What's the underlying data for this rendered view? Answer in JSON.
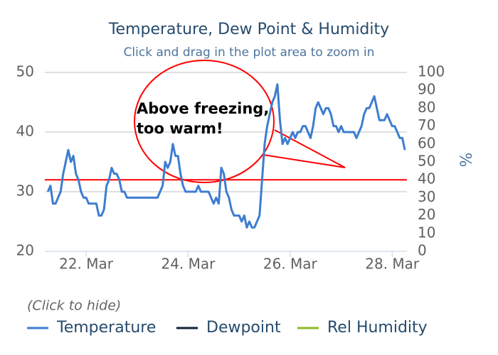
{
  "chart_data": {
    "type": "line",
    "title": "Temperature, Dew Point & Humidity",
    "subtitle": "Click and drag in the plot area to zoom in",
    "y2_label": "%",
    "legend_title": "(Click to hide)",
    "grid": true,
    "xlim": [
      21.19,
      28.29
    ],
    "xticks": [
      {
        "value": 22,
        "label": "22. Mar"
      },
      {
        "value": 24,
        "label": "24. Mar"
      },
      {
        "value": 26,
        "label": "26. Mar"
      },
      {
        "value": 28,
        "label": "28. Mar"
      }
    ],
    "ylim": [
      20,
      50
    ],
    "yticks": [
      20,
      30,
      40,
      50
    ],
    "y2lim": [
      0,
      100
    ],
    "y2ticks": [
      0,
      10,
      20,
      30,
      40,
      50,
      60,
      70,
      80,
      90,
      100
    ],
    "plot_lines": [
      {
        "value": 32,
        "color": "#ff0000"
      }
    ],
    "annotations": [
      {
        "text": [
          "Above freezing,",
          "too warm!"
        ],
        "color": "#ff0000"
      }
    ],
    "x": [
      21.25,
      21.3,
      21.35,
      21.4,
      21.45,
      21.5,
      21.55,
      21.6,
      21.65,
      21.7,
      21.75,
      21.8,
      21.85,
      21.9,
      21.95,
      22,
      22.05,
      22.1,
      22.15,
      22.2,
      22.25,
      22.3,
      22.35,
      22.4,
      22.45,
      22.5,
      22.55,
      22.6,
      22.65,
      22.7,
      22.75,
      22.8,
      22.85,
      22.9,
      22.95,
      23,
      23.05,
      23.1,
      23.15,
      23.2,
      23.25,
      23.3,
      23.35,
      23.4,
      23.45,
      23.5,
      23.55,
      23.6,
      23.65,
      23.7,
      23.75,
      23.8,
      23.85,
      23.9,
      23.95,
      24,
      24.05,
      24.1,
      24.15,
      24.2,
      24.25,
      24.3,
      24.35,
      24.4,
      24.45,
      24.5,
      24.55,
      24.6,
      24.65,
      24.7,
      24.75,
      24.8,
      24.85,
      24.9,
      24.95,
      25,
      25.05,
      25.1,
      25.15,
      25.2,
      25.25,
      25.3,
      25.35,
      25.4,
      25.45,
      25.5,
      25.55,
      25.6,
      25.65,
      25.7,
      25.75,
      25.8,
      25.85,
      25.9,
      25.95,
      26,
      26.05,
      26.1,
      26.15,
      26.2,
      26.25,
      26.3,
      26.35,
      26.4,
      26.45,
      26.5,
      26.55,
      26.6,
      26.65,
      26.7,
      26.75,
      26.8,
      26.85,
      26.9,
      26.95,
      27,
      27.05,
      27.1,
      27.15,
      27.2,
      27.25,
      27.3,
      27.35,
      27.4,
      27.45,
      27.5,
      27.55,
      27.6,
      27.65,
      27.7,
      27.75,
      27.8,
      27.85,
      27.9,
      27.95,
      28,
      28.05,
      28.1,
      28.15,
      28.2,
      28.25
    ],
    "series": [
      {
        "name": "Temperature",
        "color": "#3d7dd0",
        "values": [
          30,
          31,
          28,
          28,
          29,
          30,
          33,
          35,
          37,
          35,
          36,
          33,
          32,
          30,
          29,
          29,
          28,
          28,
          28,
          28,
          26,
          26,
          27,
          31,
          32,
          34,
          33,
          33,
          32,
          30,
          30,
          29,
          29,
          29,
          29,
          29,
          29,
          29,
          29,
          29,
          29,
          29,
          29,
          29,
          30,
          31,
          35,
          34,
          35,
          38,
          36,
          36,
          33,
          31,
          30,
          30,
          30,
          30,
          30,
          31,
          30,
          30,
          30,
          30,
          29,
          28,
          29,
          28,
          34,
          33,
          30,
          29,
          27,
          26,
          26,
          26,
          25,
          26,
          24,
          25,
          24,
          24,
          25,
          26,
          32,
          38,
          41,
          43,
          45,
          46,
          48,
          42,
          38,
          39,
          38,
          39,
          40,
          39,
          40,
          40,
          41,
          41,
          40,
          39,
          41,
          44,
          45,
          44,
          43,
          44,
          44,
          43,
          41,
          41,
          40,
          41,
          40,
          40,
          40,
          40,
          40,
          39,
          40,
          41,
          43,
          44,
          44,
          45,
          46,
          44,
          42,
          42,
          42,
          43,
          42,
          41,
          41,
          40,
          39,
          39,
          37
        ]
      },
      {
        "name": "Dewpoint",
        "color": "#0d233a"
      },
      {
        "name": "Rel Humidity",
        "color": "#8bbc21",
        "axis": "y2"
      }
    ]
  }
}
